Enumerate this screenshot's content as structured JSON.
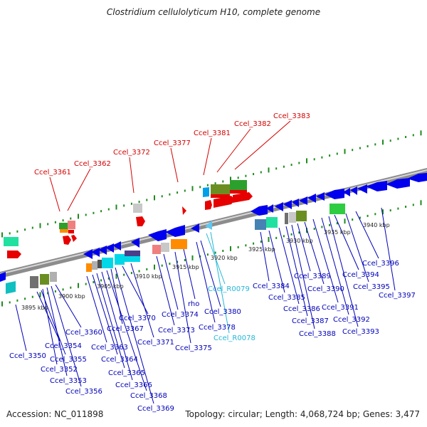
{
  "title": "Clostridium cellulolyticum H10, complete genome",
  "footer": {
    "accession": "Accession: NC_011898",
    "summary": "Topology: circular; Length: 4,068,724 bp; Genes: 3,477"
  },
  "colors": {
    "backbone": "#8c8c8c",
    "tick": "#1f8a1f",
    "forward_gene": "#0000ee",
    "rna_gene": "#e60000",
    "label_red": "#d40000",
    "label_blue": "#0000b8",
    "label_cyan": "#22b8d8"
  },
  "kbp_ticks": [
    "3895 kbp",
    "3900 kbp",
    "3905 kbp",
    "3910 kbp",
    "3915 kbp",
    "3920 kbp",
    "3925 kbp",
    "3930 kbp",
    "3935 kbp",
    "3940 kbp"
  ],
  "top_labels": [
    "Ccel_3361",
    "Ccel_3362",
    "Ccel_3372",
    "Ccel_3377",
    "Ccel_3381",
    "Ccel_3382",
    "Ccel_3383"
  ],
  "bottom_labels": [
    "Ccel_3350",
    "Ccel_3354",
    "Ccel_3355",
    "Ccel_3352",
    "Ccel_3353",
    "Ccel_3356",
    "Ccel_3360",
    "Ccel_3363",
    "Ccel_3364",
    "Ccel_3365",
    "Ccel_3366",
    "Ccel_3367",
    "Ccel_3368",
    "Ccel_3369",
    "Ccel_3370",
    "Ccel_3371",
    "Ccel_3373",
    "Ccel_3374",
    "Ccel_3375",
    "rho",
    "Ccel_3378",
    "Ccel_3380",
    "Ccel_3384",
    "Ccel_3385",
    "Ccel_3386",
    "Ccel_3387",
    "Ccel_3388",
    "Ccel_3389",
    "Ccel_3390",
    "Ccel_3391",
    "Ccel_3392",
    "Ccel_3393",
    "Ccel_3394",
    "Ccel_3395",
    "Ccel_3396",
    "Ccel_3397"
  ],
  "rna_labels": [
    "Ccel_R0079",
    "Ccel_R0078"
  ]
}
